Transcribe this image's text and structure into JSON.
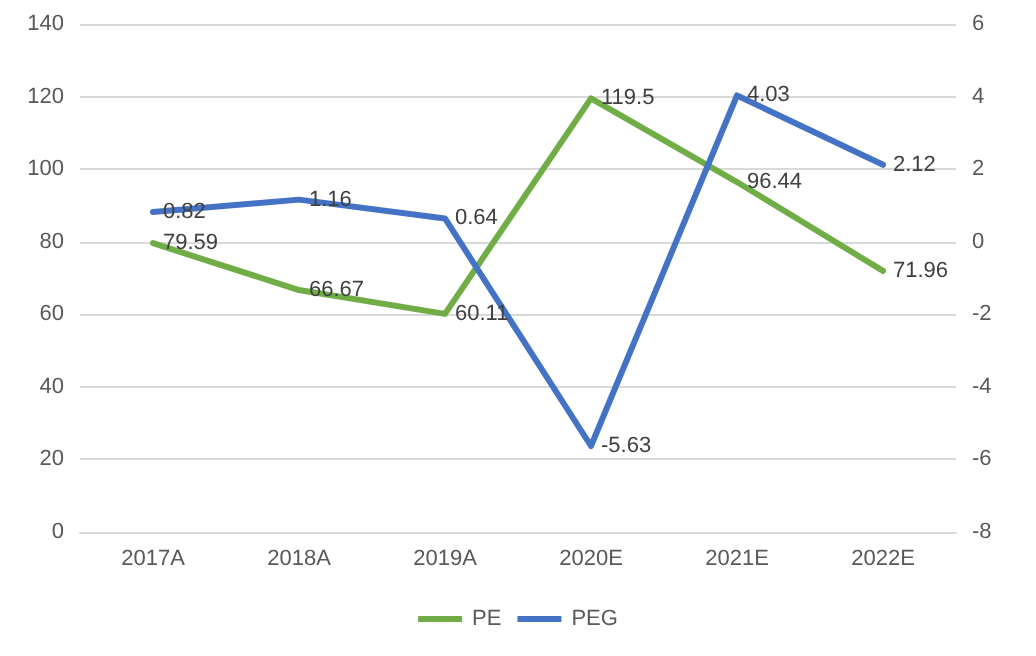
{
  "chart_data": {
    "type": "line",
    "categories": [
      "2017A",
      "2018A",
      "2019A",
      "2020E",
      "2021E",
      "2022E"
    ],
    "series": [
      {
        "name": "PE",
        "color": "#70ad47",
        "values": [
          79.59,
          66.67,
          60.11,
          119.5,
          96.44,
          71.96
        ]
      },
      {
        "name": "PEG",
        "color": "#4472c4",
        "axis": "y2",
        "values": [
          0.82,
          1.16,
          0.64,
          -5.63,
          4.03,
          2.12
        ]
      }
    ],
    "ylim": [
      0,
      140
    ],
    "yticks": [
      0,
      20,
      40,
      60,
      80,
      100,
      120,
      140
    ],
    "y2lim": [
      -8,
      6
    ],
    "y2ticks": [
      -8,
      -6,
      -4,
      -2,
      0,
      2,
      4,
      6
    ],
    "grid": "y",
    "legend": "bottom",
    "data_labels": true,
    "marker": "none",
    "line_style": "solid"
  }
}
